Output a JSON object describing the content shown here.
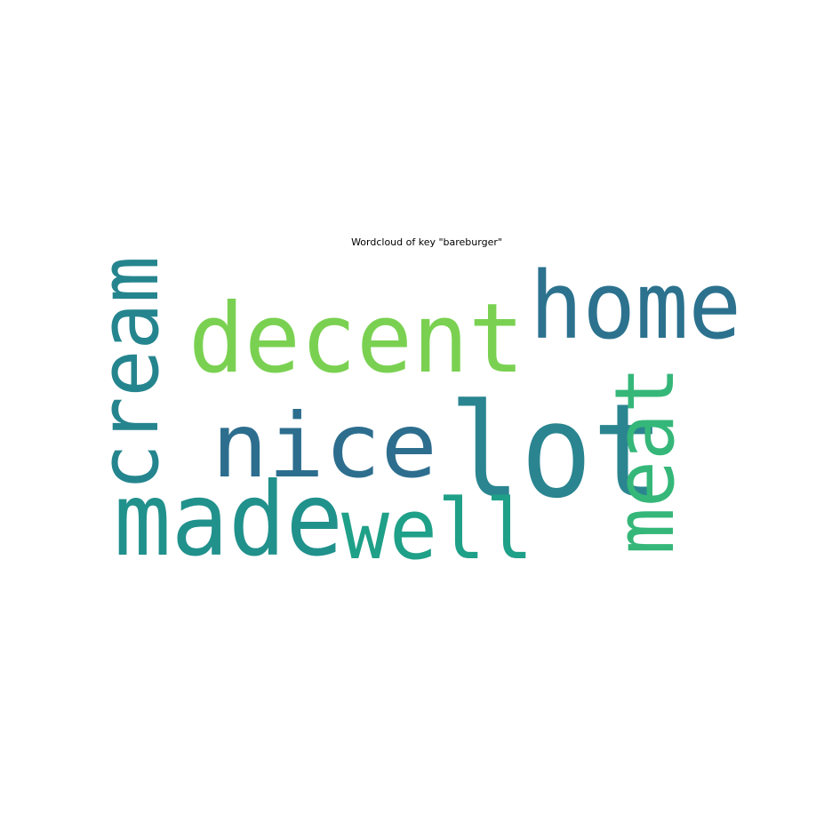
{
  "title": "Wordcloud of key \"bareburger\"",
  "words": [
    {
      "text": "lot",
      "color": "#2a8590"
    },
    {
      "text": "decent",
      "color": "#7ad151"
    },
    {
      "text": "home",
      "color": "#2c728e"
    },
    {
      "text": "nice",
      "color": "#2d6e8e"
    },
    {
      "text": "cream",
      "color": "#25858e"
    },
    {
      "text": "made",
      "color": "#21918c"
    },
    {
      "text": "well",
      "color": "#1fa088"
    },
    {
      "text": "meat",
      "color": "#35b779"
    }
  ]
}
